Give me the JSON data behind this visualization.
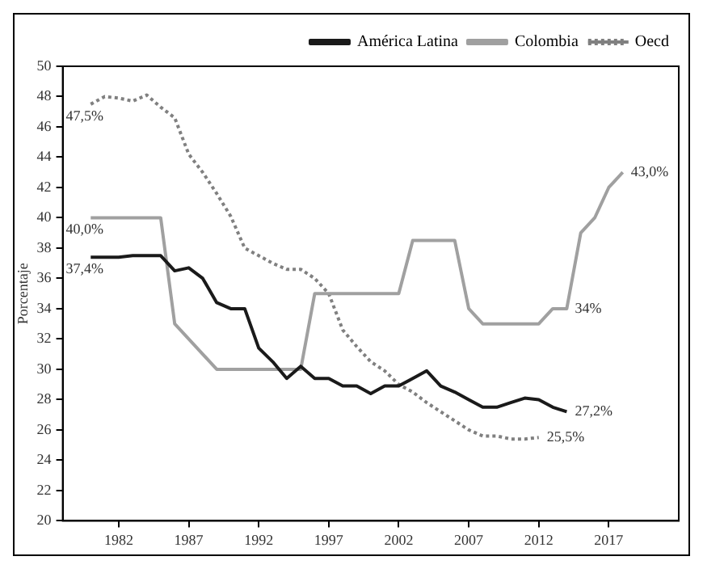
{
  "chart_data": {
    "type": "line",
    "ylabel": "Porcentaje",
    "xlim": [
      1978,
      2022
    ],
    "xticks": [
      1982,
      1987,
      1992,
      1997,
      2002,
      2007,
      2012,
      2017
    ],
    "ylim": [
      20,
      50
    ],
    "yticks": [
      20,
      22,
      24,
      26,
      28,
      30,
      32,
      34,
      36,
      38,
      40,
      42,
      44,
      46,
      48,
      50
    ],
    "grid": false,
    "legend": "top right",
    "marker": "none",
    "series": [
      {
        "name": "América Latina",
        "color": "#1a1a1a",
        "line_style": "solid",
        "x": [
          1980,
          1981,
          1982,
          1983,
          1984,
          1985,
          1986,
          1987,
          1988,
          1989,
          1990,
          1991,
          1992,
          1993,
          1994,
          1995,
          1996,
          1997,
          1998,
          1999,
          2000,
          2001,
          2002,
          2003,
          2004,
          2005,
          2006,
          2007,
          2008,
          2009,
          2010,
          2011,
          2012,
          2013,
          2014
        ],
        "values": [
          37.4,
          37.4,
          37.4,
          37.5,
          37.5,
          37.5,
          36.5,
          36.7,
          36,
          34.4,
          34,
          34,
          31.4,
          30.5,
          29.4,
          30.2,
          29.4,
          29.4,
          28.9,
          28.9,
          28.4,
          28.9,
          28.9,
          29.4,
          29.9,
          28.9,
          28.5,
          28,
          27.5,
          27.5,
          27.8,
          28.1,
          28,
          27.5,
          27.2
        ]
      },
      {
        "name": "Colombia",
        "color": "#a0a0a0",
        "line_style": "solid",
        "x": [
          1980,
          1985,
          1986,
          1989,
          1995,
          1996,
          2002,
          2003,
          2006,
          2007,
          2008,
          2012,
          2013,
          2014,
          2015,
          2016,
          2017,
          2018
        ],
        "values": [
          40,
          40,
          33,
          30,
          30,
          35,
          35,
          38.5,
          38.5,
          34,
          33,
          33,
          34,
          34,
          39,
          40,
          42,
          43
        ]
      },
      {
        "name": "Oecd",
        "color": "#808080",
        "line_style": "dotted",
        "x": [
          1980,
          1981,
          1982,
          1983,
          1984,
          1985,
          1986,
          1987,
          1988,
          1989,
          1990,
          1991,
          1992,
          1993,
          1994,
          1995,
          1996,
          1997,
          1998,
          1999,
          2000,
          2001,
          2002,
          2003,
          2004,
          2005,
          2006,
          2007,
          2008,
          2009,
          2010,
          2011,
          2012
        ],
        "values": [
          47.5,
          48,
          47.9,
          47.7,
          48.1,
          47.3,
          46.6,
          44.2,
          43,
          41.6,
          40.1,
          38,
          37.5,
          37,
          36.6,
          36.6,
          36,
          35,
          32.6,
          31.5,
          30.5,
          29.9,
          29,
          28.5,
          27.8,
          27.2,
          26.6,
          26,
          25.6,
          25.6,
          25.4,
          25.4,
          25.5
        ]
      }
    ],
    "annotations": [
      {
        "text": "47,5%",
        "x": 1980,
        "y": 47.5
      },
      {
        "text": "40,0%",
        "x": 1980,
        "y": 40
      },
      {
        "text": "37,4%",
        "x": 1980,
        "y": 37.4
      },
      {
        "text": "43,0%",
        "x": 2018,
        "y": 43
      },
      {
        "text": "34%",
        "x": 2014,
        "y": 34
      },
      {
        "text": "27,2%",
        "x": 2014,
        "y": 27.2
      },
      {
        "text": "25,5%",
        "x": 2012,
        "y": 25.5
      }
    ]
  }
}
